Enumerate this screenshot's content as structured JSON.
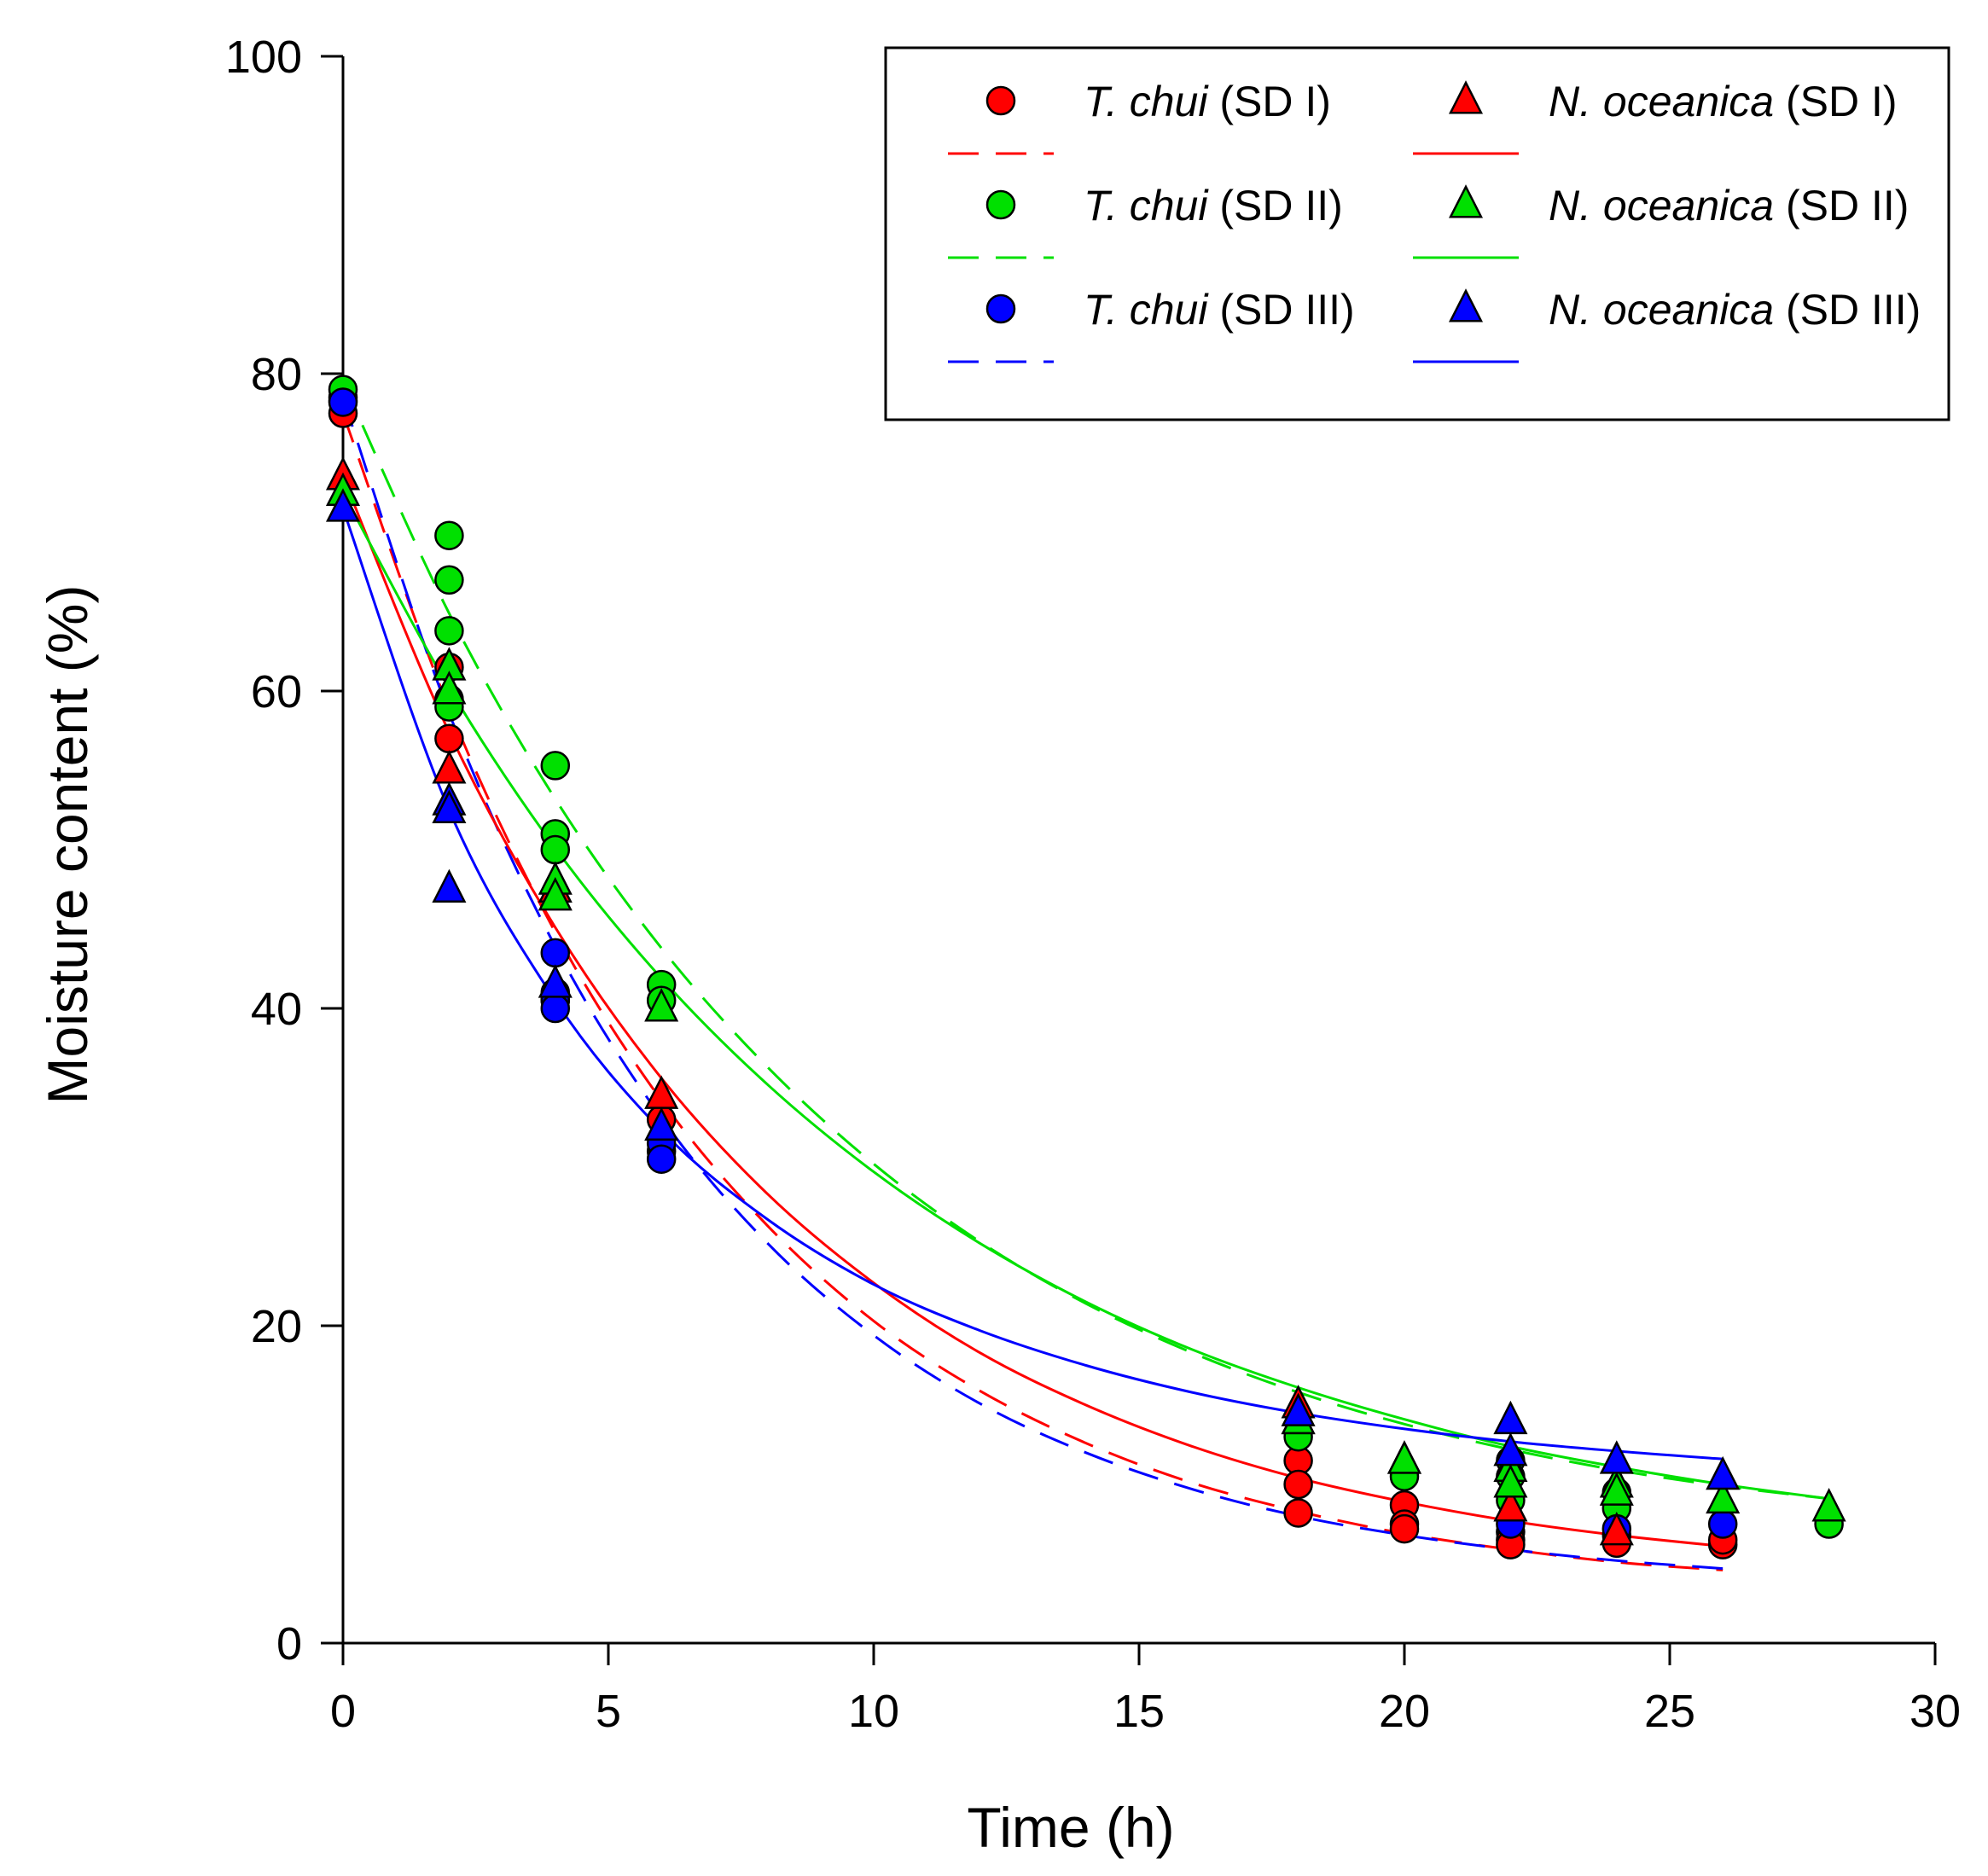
{
  "chart_data": {
    "type": "scatter",
    "title": "",
    "xlabel": "Time (h)",
    "ylabel": "Moisture content (%)",
    "xlim": [
      0,
      30
    ],
    "ylim": [
      0,
      100
    ],
    "xticks": [
      "0",
      "5",
      "10",
      "15",
      "20",
      "25",
      "30"
    ],
    "yticks": [
      "0",
      "20",
      "40",
      "60",
      "80",
      "100"
    ],
    "grid": false,
    "legend_position": "top-right",
    "series": [
      {
        "name": "T. chui (SD I)",
        "species": "T. chui",
        "condition": "(SD I)",
        "marker": "circle",
        "line": "dashed",
        "color": "#ff0000",
        "points": [
          [
            0,
            77.5
          ],
          [
            0,
            78.3
          ],
          [
            2,
            61.5
          ],
          [
            2,
            59.5
          ],
          [
            2,
            57
          ],
          [
            4,
            41
          ],
          [
            4,
            40.5
          ],
          [
            6,
            33
          ],
          [
            6,
            31
          ],
          [
            18,
            11.5
          ],
          [
            18,
            10
          ],
          [
            18,
            8.2
          ],
          [
            20,
            8.7
          ],
          [
            20,
            7.5
          ],
          [
            20,
            7.2
          ],
          [
            22,
            7
          ],
          [
            22,
            6.5
          ],
          [
            22,
            6.2
          ],
          [
            24,
            6.8
          ],
          [
            24,
            6.3
          ],
          [
            26,
            6.2
          ],
          [
            26,
            6.5
          ]
        ],
        "fit": [
          [
            0,
            77.5
          ],
          [
            2,
            58.9
          ],
          [
            4,
            44.8
          ],
          [
            6,
            34.2
          ],
          [
            8,
            26.3
          ],
          [
            10,
            20.3
          ],
          [
            12,
            15.9
          ],
          [
            14,
            12.6
          ],
          [
            16,
            10.1
          ],
          [
            18,
            8.3
          ],
          [
            20,
            6.9
          ],
          [
            22,
            5.9
          ],
          [
            24,
            5.1
          ],
          [
            26,
            4.6
          ]
        ]
      },
      {
        "name": "T. chui (SD II)",
        "species": "T. chui",
        "condition": "(SD II)",
        "marker": "circle",
        "line": "dashed",
        "color": "#00e000",
        "points": [
          [
            0,
            78.5
          ],
          [
            0,
            79
          ],
          [
            2,
            69.8
          ],
          [
            2,
            67
          ],
          [
            2,
            63.8
          ],
          [
            2,
            59
          ],
          [
            4,
            55.3
          ],
          [
            4,
            51
          ],
          [
            4,
            50
          ],
          [
            6,
            41.5
          ],
          [
            6,
            40.5
          ],
          [
            18,
            13
          ],
          [
            20,
            10.5
          ],
          [
            22,
            11.5
          ],
          [
            22,
            10.5
          ],
          [
            22,
            9
          ],
          [
            24,
            9.5
          ],
          [
            24,
            8.5
          ],
          [
            28,
            7.5
          ]
        ],
        "fit": [
          [
            0,
            79.5
          ],
          [
            2,
            64.9
          ],
          [
            4,
            53.2
          ],
          [
            6,
            43.8
          ],
          [
            8,
            36.3
          ],
          [
            10,
            30.2
          ],
          [
            12,
            25.3
          ],
          [
            14,
            21.4
          ],
          [
            16,
            18.3
          ],
          [
            18,
            15.8
          ],
          [
            20,
            13.8
          ],
          [
            22,
            12.2
          ],
          [
            24,
            10.9
          ],
          [
            26,
            9.9
          ],
          [
            28,
            9.1
          ]
        ]
      },
      {
        "name": "T. chui (SD III)",
        "species": "T. chui",
        "condition": "(SD III)",
        "marker": "circle",
        "line": "dashed",
        "color": "#0000ff",
        "points": [
          [
            0,
            78.2
          ],
          [
            4,
            43.5
          ],
          [
            4,
            40.5
          ],
          [
            4,
            40
          ],
          [
            6,
            31.5
          ],
          [
            6,
            30.5
          ],
          [
            22,
            7.5
          ],
          [
            24,
            7.2
          ],
          [
            26,
            7.5
          ]
        ],
        "fit": [
          [
            0,
            78.5
          ],
          [
            2,
            58.6
          ],
          [
            4,
            43.9
          ],
          [
            6,
            33.1
          ],
          [
            8,
            25.2
          ],
          [
            10,
            19.4
          ],
          [
            12,
            15.1
          ],
          [
            14,
            12
          ],
          [
            16,
            9.7
          ],
          [
            18,
            8
          ],
          [
            20,
            6.8
          ],
          [
            22,
            5.9
          ],
          [
            24,
            5.2
          ],
          [
            26,
            4.7
          ]
        ]
      },
      {
        "name": "N. oceanica (SD I)",
        "species": "N. oceanica",
        "condition": "(SD I)",
        "marker": "triangle",
        "line": "solid",
        "color": "#ff0000",
        "points": [
          [
            0,
            73.5
          ],
          [
            2,
            55
          ],
          [
            4,
            47.5
          ],
          [
            6,
            34.5
          ],
          [
            18,
            15
          ],
          [
            18,
            14
          ],
          [
            20,
            11.5
          ],
          [
            22,
            8.5
          ],
          [
            24,
            7
          ]
        ],
        "fit": [
          [
            0,
            73.5
          ],
          [
            2,
            57.4
          ],
          [
            4,
            45.1
          ],
          [
            6,
            35.6
          ],
          [
            8,
            28.3
          ],
          [
            10,
            22.7
          ],
          [
            12,
            18.3
          ],
          [
            14,
            15
          ],
          [
            16,
            12.4
          ],
          [
            18,
            10.4
          ],
          [
            20,
            8.9
          ],
          [
            22,
            7.7
          ],
          [
            24,
            6.8
          ],
          [
            26,
            6.1
          ]
        ]
      },
      {
        "name": "N. oceanica (SD II)",
        "species": "N. oceanica",
        "condition": "(SD II)",
        "marker": "triangle",
        "line": "solid",
        "color": "#00e000",
        "points": [
          [
            0,
            72.5
          ],
          [
            2,
            61.5
          ],
          [
            2,
            60
          ],
          [
            4,
            48
          ],
          [
            4,
            47
          ],
          [
            6,
            40
          ],
          [
            18,
            14
          ],
          [
            20,
            11.5
          ],
          [
            22,
            11
          ],
          [
            22,
            10
          ],
          [
            24,
            10
          ],
          [
            24,
            9.5
          ],
          [
            26,
            9
          ],
          [
            28,
            8.5
          ]
        ],
        "fit": [
          [
            0,
            72.5
          ],
          [
            2,
            60.2
          ],
          [
            4,
            50.1
          ],
          [
            6,
            41.9
          ],
          [
            8,
            35.2
          ],
          [
            10,
            29.7
          ],
          [
            12,
            25.2
          ],
          [
            14,
            21.5
          ],
          [
            16,
            18.5
          ],
          [
            18,
            16.1
          ],
          [
            20,
            14.1
          ],
          [
            22,
            12.4
          ],
          [
            24,
            11.1
          ],
          [
            26,
            10
          ],
          [
            28,
            9.1
          ]
        ]
      },
      {
        "name": "N. oceanica (SD III)",
        "species": "N. oceanica",
        "condition": "(SD III)",
        "marker": "triangle",
        "line": "solid",
        "color": "#0000ff",
        "points": [
          [
            0,
            71.5
          ],
          [
            2,
            53
          ],
          [
            2,
            52.5
          ],
          [
            2,
            47.5
          ],
          [
            4,
            41.5
          ],
          [
            6,
            32.5
          ],
          [
            18,
            14.5
          ],
          [
            22,
            14
          ],
          [
            22,
            12
          ],
          [
            24,
            11.5
          ],
          [
            26,
            10.5
          ]
        ],
        "fit": [
          [
            0,
            71.5
          ],
          [
            2,
            52.5
          ],
          [
            4,
            40.5
          ],
          [
            6,
            32.3
          ],
          [
            8,
            26.7
          ],
          [
            10,
            22.6
          ],
          [
            12,
            19.7
          ],
          [
            14,
            17.5
          ],
          [
            16,
            15.8
          ],
          [
            18,
            14.5
          ],
          [
            20,
            13.5
          ],
          [
            22,
            12.7
          ],
          [
            24,
            12.1
          ],
          [
            26,
            11.6
          ]
        ]
      }
    ]
  }
}
